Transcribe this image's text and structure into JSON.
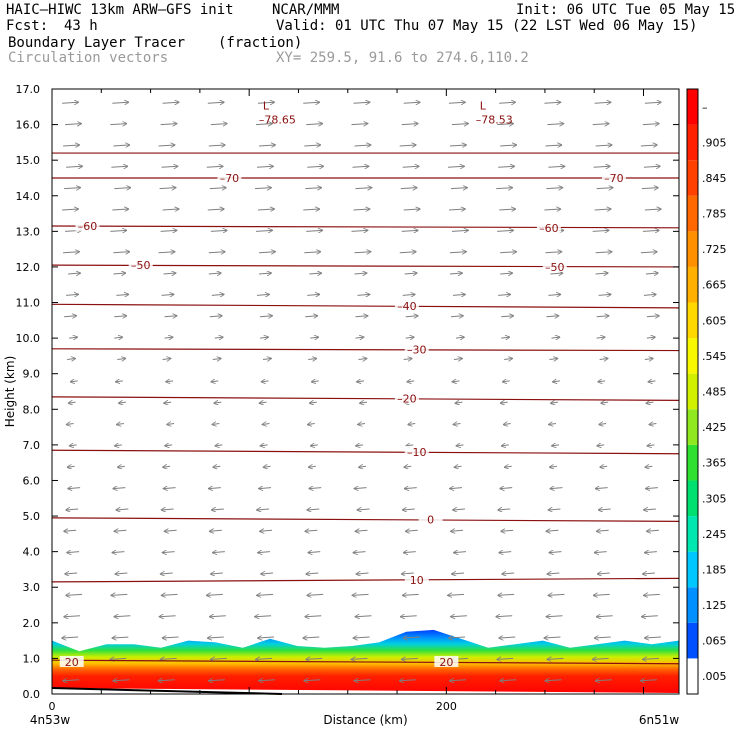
{
  "header": {
    "model": "HAIC–HIWC 13km ARW–GFS init",
    "org": "NCAR/MMM",
    "init": "Init: 06 UTC Tue 05 May 15",
    "fcst_label": "Fcst:",
    "fcst_value": "43 h",
    "valid": "Valid: 01 UTC Thu 07 May 15 (22 LST Wed 06 May 15)",
    "field": "Boundary Layer Tracer",
    "field_units": "(fraction)",
    "overlay": "Circulation vectors",
    "xy_range": "XY= 259.5, 91.6 to 274.6,110.2"
  },
  "chart_data": {
    "type": "heatmap",
    "title": "Boundary Layer Tracer (fraction)",
    "xlabel": "Distance (km)",
    "ylabel": "Height (km)",
    "xlim": [
      0,
      318
    ],
    "ylim": [
      0,
      17
    ],
    "x_ticks": [
      0,
      200
    ],
    "x_end_labels": [
      "4n53w",
      "6n51w"
    ],
    "y_ticks": [
      "0.0",
      "1.0",
      "2.0",
      "3.0",
      "4.0",
      "5.0",
      "6.0",
      "7.0",
      "8.0",
      "9.0",
      "10.0",
      "11.0",
      "12.0",
      "13.0",
      "14.0",
      "15.0",
      "16.0",
      "17.0"
    ],
    "colorbar_labels": [
      ".005",
      ".065",
      ".125",
      ".185",
      ".245",
      ".305",
      ".365",
      ".425",
      ".485",
      ".545",
      ".605",
      ".665",
      ".725",
      ".785",
      ".845",
      ".905",
      "–"
    ],
    "colorbar_colors": [
      "#ffffff",
      "#0050ff",
      "#0090ff",
      "#00c8ff",
      "#00e8b0",
      "#00e070",
      "#30e030",
      "#90e820",
      "#d0f000",
      "#f8f800",
      "#ffd800",
      "#ffb000",
      "#ff9000",
      "#ff6800",
      "#ff4000",
      "#ff2000",
      "#ff0000"
    ],
    "tracer_top_km": [
      1.5,
      1.2,
      1.4,
      1.4,
      1.3,
      1.5,
      1.45,
      1.3,
      1.55,
      1.35,
      1.3,
      1.35,
      1.45,
      1.75,
      1.8,
      1.55,
      1.3,
      1.4,
      1.5,
      1.3,
      1.4,
      1.5,
      1.4,
      1.5
    ],
    "temperature_contours": [
      {
        "label": "20",
        "y": [
          0.95,
          0.85
        ]
      },
      {
        "label": "10",
        "y": [
          3.15,
          3.25
        ]
      },
      {
        "label": "0",
        "y": [
          4.95,
          4.85
        ]
      },
      {
        "label": "–10",
        "y": [
          6.85,
          6.75
        ]
      },
      {
        "label": "–20",
        "y": [
          8.35,
          8.25
        ]
      },
      {
        "label": "–30",
        "y": [
          9.7,
          9.65
        ]
      },
      {
        "label": "–40",
        "y": [
          10.95,
          10.85
        ]
      },
      {
        "label": "–50",
        "y": [
          12.05,
          12.0
        ]
      },
      {
        "label": "–60",
        "y": [
          13.15,
          13.1
        ]
      },
      {
        "label": "–70",
        "y": [
          14.5,
          14.5
        ]
      },
      {
        "y": [
          15.2,
          15.2
        ]
      }
    ],
    "minima": [
      {
        "marker": "L",
        "label": "–78.65",
        "x": 110,
        "y": 16.25
      },
      {
        "marker": "L",
        "label": "–78.53",
        "x": 220,
        "y": 16.25
      }
    ],
    "contour_label_positions": [
      {
        "label": "20",
        "x": 10,
        "y": 0.9
      },
      {
        "label": "20",
        "x": 200,
        "y": 0.9
      },
      {
        "label": "10",
        "x": 185,
        "y": 3.2
      },
      {
        "label": "0",
        "x": 192,
        "y": 4.9
      },
      {
        "label": "–10",
        "x": 185,
        "y": 6.8
      },
      {
        "label": "–20",
        "x": 180,
        "y": 8.3
      },
      {
        "label": "–30",
        "x": 185,
        "y": 9.68
      },
      {
        "label": "–40",
        "x": 180,
        "y": 10.9
      },
      {
        "label": "–50",
        "x": 45,
        "y": 12.05
      },
      {
        "label": "–50",
        "x": 255,
        "y": 12.0
      },
      {
        "label": "–60",
        "x": 18,
        "y": 13.15
      },
      {
        "label": "–60",
        "x": 252,
        "y": 13.1
      },
      {
        "label": "–70",
        "x": 90,
        "y": 14.5
      },
      {
        "label": "–70",
        "x": 285,
        "y": 14.5
      }
    ],
    "wind_vectors": {
      "columns": 13,
      "upper_direction": "east",
      "lower_direction": "west",
      "transition_km": 9.3
    }
  }
}
